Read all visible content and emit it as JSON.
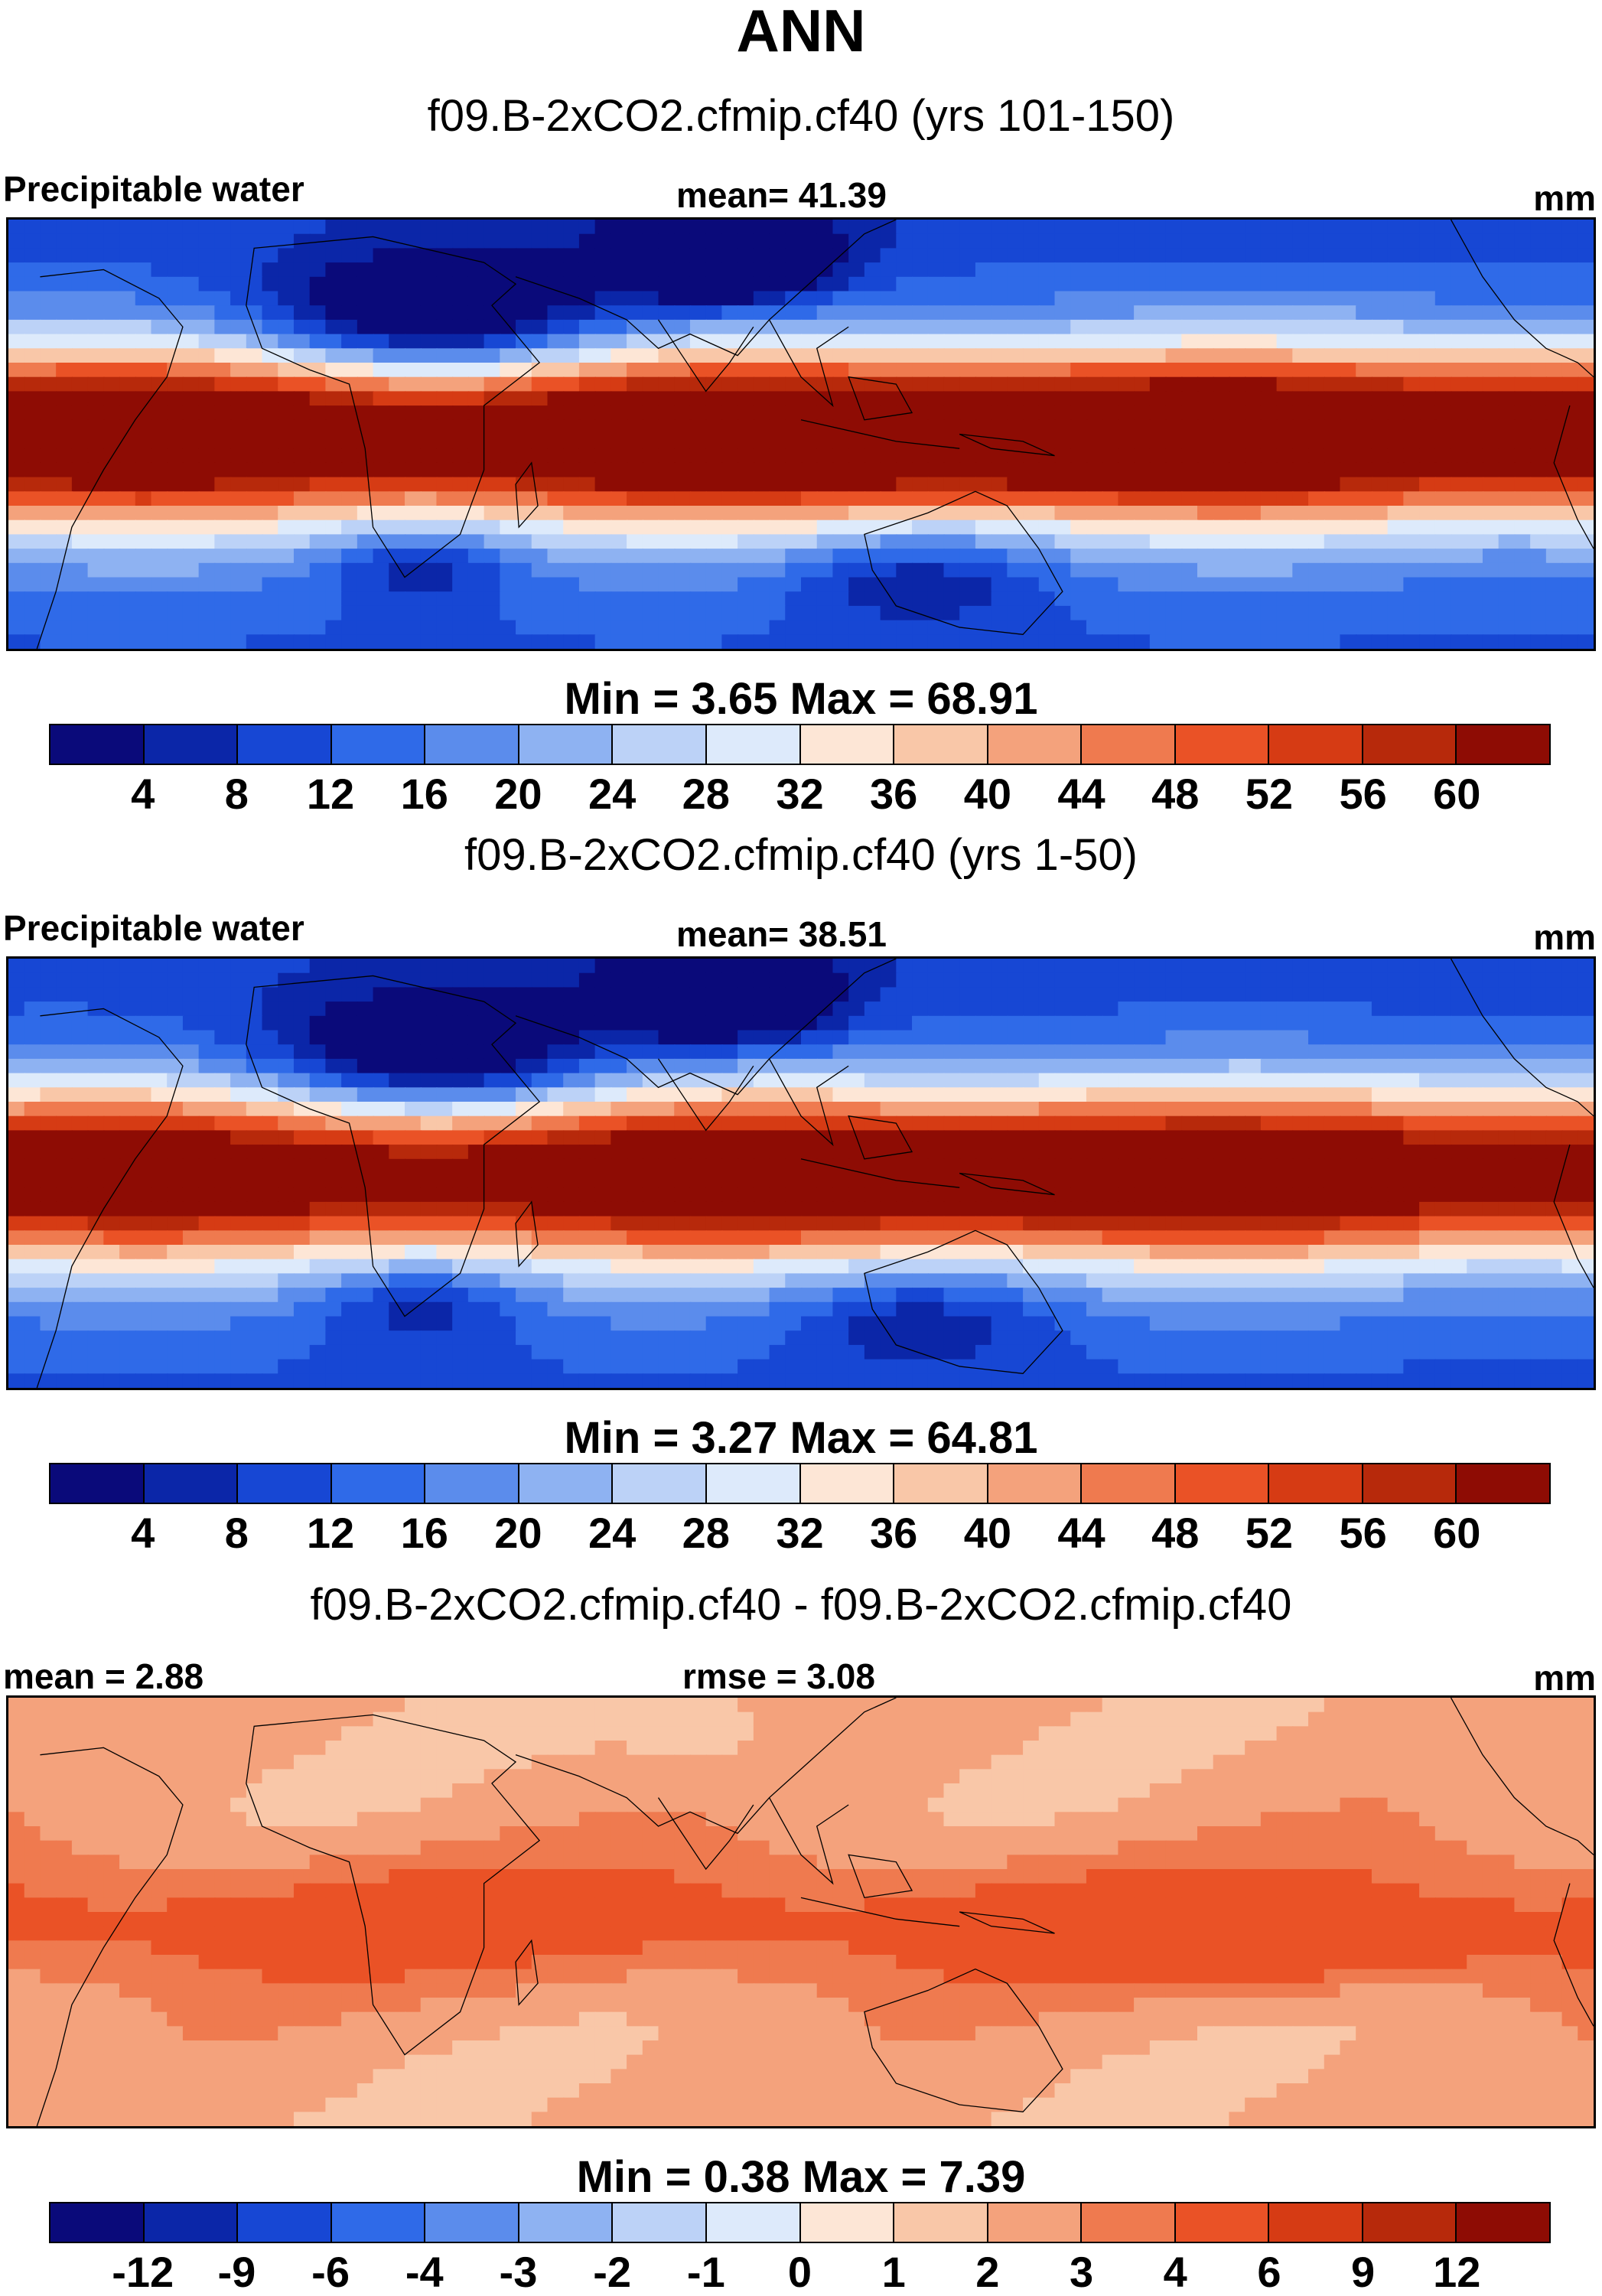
{
  "title": "ANN",
  "panels": [
    {
      "subtitle": "f09.B-2xCO2.cfmip.cf40 (yrs 101-150)",
      "left_label": "Precipitable water",
      "center_label": "mean=  41.39",
      "right_label": "mm",
      "minmax": "Min =   3.65 Max =  68.91",
      "field": "absolute",
      "intensity": 1.0,
      "colors": [
        "#0a0a7a",
        "#0b26a8",
        "#1747d4",
        "#2f6ae8",
        "#5b8cec",
        "#8eb2f2",
        "#bcd2f7",
        "#ddeafb",
        "#fde6d6",
        "#f9c7a8",
        "#f4a27c",
        "#ef7a4f",
        "#ea5226",
        "#d63b14",
        "#b7290b",
        "#8e0c04"
      ],
      "ticks": [
        "4",
        "8",
        "12",
        "16",
        "20",
        "24",
        "28",
        "32",
        "36",
        "40",
        "44",
        "48",
        "52",
        "56",
        "60"
      ]
    },
    {
      "subtitle": "f09.B-2xCO2.cfmip.cf40 (yrs 1-50)",
      "left_label": "Precipitable water",
      "center_label": "mean=  38.51",
      "right_label": "mm",
      "minmax": "Min =   3.27 Max =  64.81",
      "field": "absolute",
      "intensity": 0.92,
      "colors": [
        "#0a0a7a",
        "#0b26a8",
        "#1747d4",
        "#2f6ae8",
        "#5b8cec",
        "#8eb2f2",
        "#bcd2f7",
        "#ddeafb",
        "#fde6d6",
        "#f9c7a8",
        "#f4a27c",
        "#ef7a4f",
        "#ea5226",
        "#d63b14",
        "#b7290b",
        "#8e0c04"
      ],
      "ticks": [
        "4",
        "8",
        "12",
        "16",
        "20",
        "24",
        "28",
        "32",
        "36",
        "40",
        "44",
        "48",
        "52",
        "56",
        "60"
      ]
    },
    {
      "subtitle": "f09.B-2xCO2.cfmip.cf40 - f09.B-2xCO2.cfmip.cf40",
      "left_label": "mean =   2.88",
      "center_label": "rmse =   3.08",
      "right_label": "mm",
      "minmax": "Min =   0.38 Max =    7.39",
      "field": "difference",
      "intensity": 1.0,
      "colors": [
        "#0a0a7a",
        "#0b26a8",
        "#1747d4",
        "#2f6ae8",
        "#5b8cec",
        "#8eb2f2",
        "#bcd2f7",
        "#ddeafb",
        "#fde6d6",
        "#f9c7a8",
        "#f4a27c",
        "#ef7a4f",
        "#ea5226",
        "#d63b14",
        "#b7290b",
        "#8e0c04"
      ],
      "ticks": [
        "-12",
        "-9",
        "-6",
        "-4",
        "-3",
        "-2",
        "-1",
        "0",
        "1",
        "2",
        "3",
        "4",
        "6",
        "9",
        "12"
      ]
    }
  ]
}
